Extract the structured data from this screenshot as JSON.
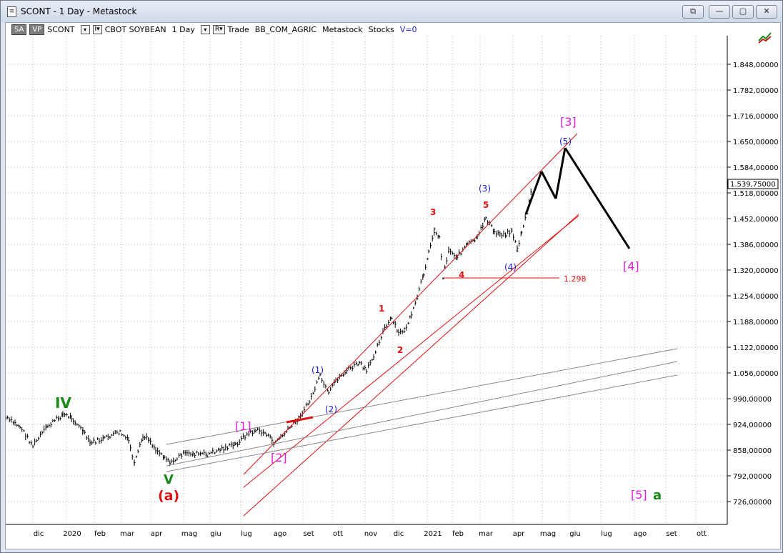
{
  "window": {
    "title": "SCONT - 1 Day - Metastock",
    "app_icon": "document-icon",
    "buttons": {
      "restore": "⧉",
      "minimize": "—",
      "maximize": "▢",
      "close": "✕"
    }
  },
  "toolbar": {
    "sa_label": "SA",
    "vp_label": "VP",
    "symbol": "SCONT",
    "indicator_box": "I▾",
    "instrument": "CBOT SOYBEAN",
    "period": "1 Day",
    "r_box": "R▾",
    "trade": "Trade",
    "list": "BB_COM_AGRIC",
    "source": "Metastock",
    "market": "Stocks",
    "v_value": "V=0"
  },
  "chart": {
    "y_ticks": [
      "1.848,00000",
      "1.782,00000",
      "1.716,00000",
      "1.650,00000",
      "1.584,00000",
      "1.518,00000",
      "1.452,00000",
      "1.386,00000",
      "1.320,00000",
      "1.254,00000",
      "1.188,00000",
      "1.122,00000",
      "1.056,00000",
      "990,00000",
      "924,00000",
      "858,00000",
      "792,00000",
      "726,00000"
    ],
    "x_ticks": [
      "dic",
      "2020",
      "feb",
      "mar",
      "apr",
      "mag",
      "giu",
      "lug",
      "ago",
      "set",
      "ott",
      "nov",
      "dic",
      "2021",
      "feb",
      "mar",
      "apr",
      "mag",
      "giu",
      "lug",
      "ago",
      "set",
      "ott"
    ],
    "price_label": "1.539,75000",
    "level_label": "1.298",
    "colors": {
      "magenta": "#e020e0",
      "blue": "#1a1acc",
      "red": "#dd1111",
      "green": "#1a8a1a",
      "black": "#000000"
    },
    "wave_labels": {
      "IV": "IV",
      "V": "V",
      "a_big": "(a)",
      "m1": "[1]",
      "m2": "[2]",
      "m3": "[3]",
      "m4": "[4]",
      "m5": "[5]",
      "a_small": "a",
      "b1": "(1)",
      "b2": "(2)",
      "b3": "(3)",
      "b4": "(4)",
      "b5": "(5)",
      "r1": "1",
      "r2": "2",
      "r3": "3",
      "r4": "4",
      "r5": "5"
    }
  }
}
